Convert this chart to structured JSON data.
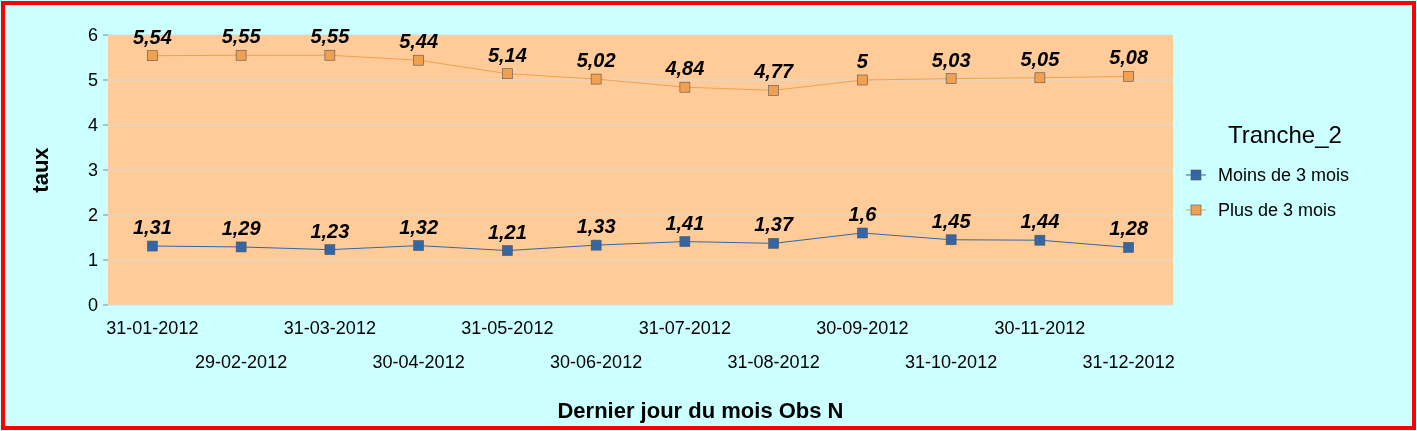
{
  "chart_data": {
    "type": "line",
    "xlabel": "Dernier jour du mois Obs N",
    "ylabel": "taux",
    "legend_title": "Tranche_2",
    "categories": [
      "31-01-2012",
      "29-02-2012",
      "31-03-2012",
      "30-04-2012",
      "31-05-2012",
      "30-06-2012",
      "31-07-2012",
      "31-08-2012",
      "30-09-2012",
      "31-10-2012",
      "30-11-2012",
      "31-12-2012"
    ],
    "series": [
      {
        "name": "Moins de 3 mois",
        "color": "#3465a4",
        "values": [
          1.31,
          1.29,
          1.23,
          1.32,
          1.21,
          1.33,
          1.41,
          1.37,
          1.6,
          1.45,
          1.44,
          1.28
        ],
        "value_labels": [
          "1,31",
          "1,29",
          "1,23",
          "1,32",
          "1,21",
          "1,33",
          "1,41",
          "1,37",
          "1,6",
          "1,45",
          "1,44",
          "1,28"
        ]
      },
      {
        "name": "Plus de 3 mois",
        "color": "#f0a050",
        "values": [
          5.54,
          5.55,
          5.55,
          5.44,
          5.14,
          5.02,
          4.84,
          4.77,
          5,
          5.03,
          5.05,
          5.08
        ],
        "value_labels": [
          "5,54",
          "5,55",
          "5,55",
          "5,44",
          "5,14",
          "5,02",
          "4,84",
          "4,77",
          "5",
          "5,03",
          "5,05",
          "5,08"
        ]
      }
    ],
    "ylim": [
      0,
      6
    ],
    "yticks": [
      0,
      1,
      2,
      3,
      4,
      5,
      6
    ],
    "grid": "y",
    "legend": "right",
    "marker": "square",
    "line_style": "solid"
  }
}
